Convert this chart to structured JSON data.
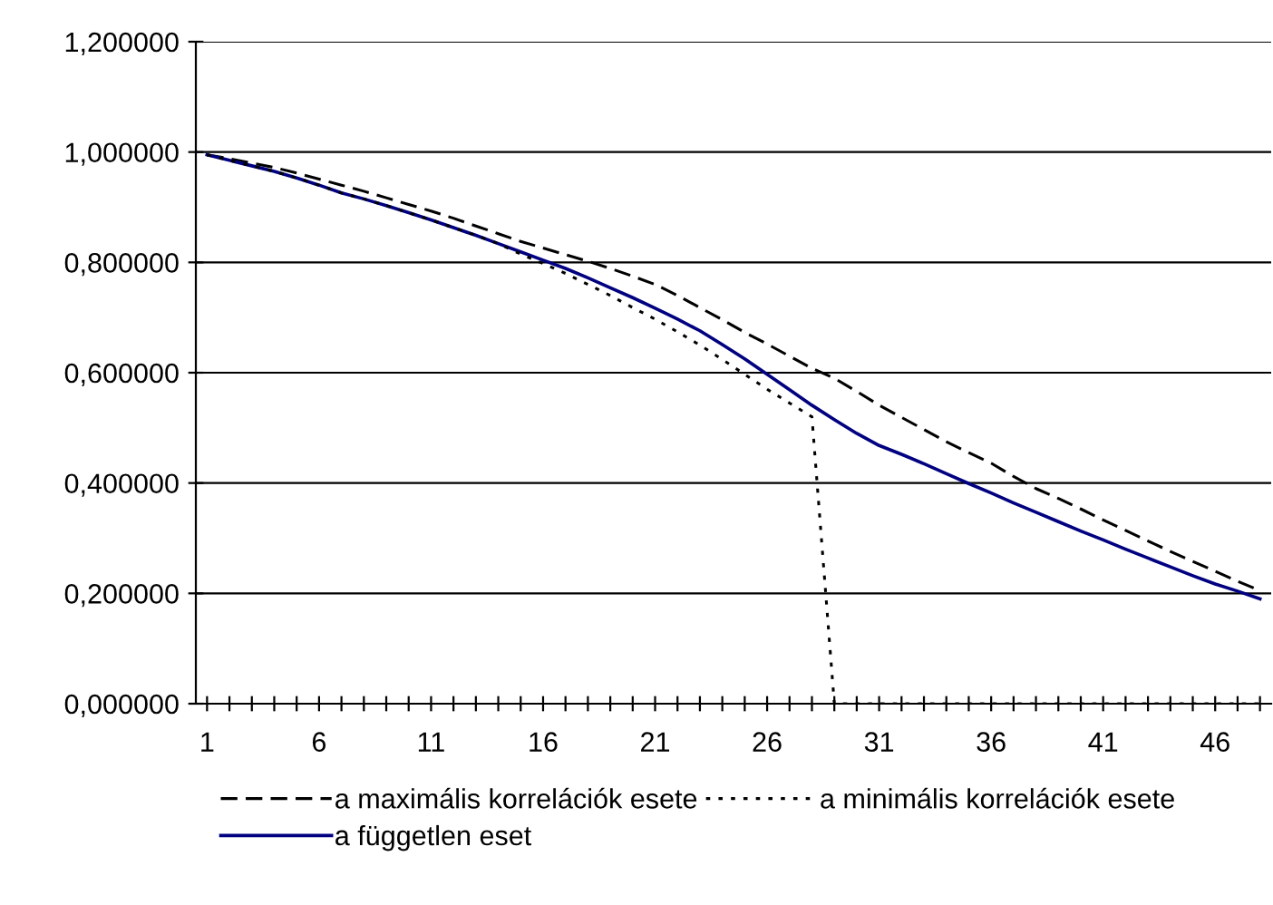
{
  "chart_data": {
    "type": "line",
    "categories": [
      "1",
      null,
      null,
      null,
      null,
      "6",
      null,
      null,
      null,
      null,
      "11",
      null,
      null,
      null,
      null,
      "16",
      null,
      null,
      null,
      null,
      "21",
      null,
      null,
      null,
      null,
      "26",
      null,
      null,
      null,
      null,
      "31",
      null,
      null,
      null,
      null,
      "36",
      null,
      null,
      null,
      null,
      "41",
      null,
      null,
      null,
      null,
      "46",
      null,
      null
    ],
    "series": [
      {
        "name": "a maximális korrelációk esete",
        "color": "#000000",
        "line_style": "dashed",
        "values": [
          0.995,
          0.988,
          0.98,
          0.972,
          0.962,
          0.951,
          0.94,
          0.929,
          0.917,
          0.905,
          0.893,
          0.88,
          0.866,
          0.852,
          0.838,
          0.826,
          0.814,
          0.802,
          0.789,
          0.775,
          0.76,
          0.74,
          0.718,
          0.696,
          0.673,
          0.652,
          0.63,
          0.608,
          0.59,
          0.566,
          0.541,
          0.519,
          0.497,
          0.475,
          0.455,
          0.436,
          0.412,
          0.39,
          0.372,
          0.353,
          0.333,
          0.314,
          0.295,
          0.276,
          0.258,
          0.24,
          0.222,
          0.205
        ]
      },
      {
        "name": "a független eset",
        "color": "#000080",
        "line_style": "solid",
        "values": [
          0.995,
          0.985,
          0.975,
          0.965,
          0.953,
          0.94,
          0.926,
          0.915,
          0.903,
          0.89,
          0.877,
          0.863,
          0.849,
          0.834,
          0.819,
          0.804,
          0.789,
          0.772,
          0.754,
          0.736,
          0.717,
          0.697,
          0.676,
          0.651,
          0.625,
          0.597,
          0.569,
          0.541,
          0.515,
          0.49,
          0.468,
          0.452,
          0.435,
          0.417,
          0.399,
          0.382,
          0.364,
          0.347,
          0.33,
          0.313,
          0.297,
          0.28,
          0.264,
          0.248,
          0.232,
          0.217,
          0.204,
          0.19
        ]
      },
      {
        "name": "a minimális korrelációk esete",
        "color": "#000000",
        "line_style": "dotted",
        "values": [
          0.995,
          0.985,
          0.975,
          0.965,
          0.953,
          0.94,
          0.926,
          0.915,
          0.903,
          0.89,
          0.877,
          0.863,
          0.849,
          0.834,
          0.815,
          0.798,
          0.78,
          0.76,
          0.74,
          0.718,
          0.697,
          0.674,
          0.65,
          0.624,
          0.597,
          0.57,
          0.545,
          0.52,
          0,
          0,
          0,
          0,
          0,
          0,
          0,
          0,
          0,
          0,
          0,
          0,
          0,
          0,
          0,
          0,
          0,
          0,
          0,
          0
        ]
      }
    ],
    "ylim": [
      0,
      1.2
    ],
    "yticks": [
      {
        "value": 0,
        "label": "0,000000"
      },
      {
        "value": 0.2,
        "label": "0,200000"
      },
      {
        "value": 0.4,
        "label": "0,400000"
      },
      {
        "value": 0.6,
        "label": "0,600000"
      },
      {
        "value": 0.8,
        "label": "0,800000"
      },
      {
        "value": 1.0,
        "label": "1,000000"
      },
      {
        "value": 1.2,
        "label": "1,200000"
      }
    ],
    "grid": "y",
    "legend": "bottom",
    "marker": "none"
  }
}
